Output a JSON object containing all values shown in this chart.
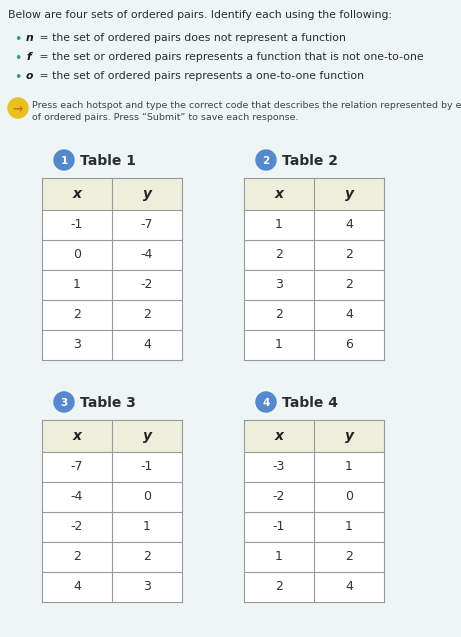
{
  "bg_color": "#eef5f5",
  "text_color": "#2c2c2c",
  "title_text": "Below are four sets of ordered pairs. Identify each using the following:",
  "bullets": [
    {
      "bold": "n",
      "rest": " = the set of ordered pairs does not represent a function"
    },
    {
      "bold": "f",
      "rest": " = the set or ordered pairs represents a function that is not one-to-one"
    },
    {
      "bold": "o",
      "rest": " = the set of ordered pairs represents a one-to-one function"
    }
  ],
  "instruction_line1": "Press each hotspot and type the correct code that describes the relation represented by each set",
  "instruction_line2": "of ordered pairs. Press “Submit” to save each response.",
  "bullet_color": "#2a9d8f",
  "bold_color": "#1a1a1a",
  "instruction_color": "#444444",
  "arrow_bg": "#e8c020",
  "arrow_fg": "#cc7700",
  "tables": [
    {
      "number": "1",
      "title": "Table 1",
      "col_x": [
        "-1",
        "0",
        "1",
        "2",
        "3"
      ],
      "col_y": [
        "-7",
        "-4",
        "-2",
        "2",
        "4"
      ]
    },
    {
      "number": "2",
      "title": "Table 2",
      "col_x": [
        "1",
        "2",
        "3",
        "2",
        "1"
      ],
      "col_y": [
        "4",
        "2",
        "2",
        "4",
        "6"
      ]
    },
    {
      "number": "3",
      "title": "Table 3",
      "col_x": [
        "-7",
        "-4",
        "-2",
        "2",
        "4"
      ],
      "col_y": [
        "-1",
        "0",
        "1",
        "2",
        "3"
      ]
    },
    {
      "number": "4",
      "title": "Table 4",
      "col_x": [
        "-3",
        "-2",
        "-1",
        "1",
        "2"
      ],
      "col_y": [
        "1",
        "0",
        "1",
        "2",
        "4"
      ]
    }
  ],
  "hotspot_bg": "#5588cc",
  "hotspot_fg": "#ffffff",
  "table_border": "#999999",
  "header_bg": "#eeeedd",
  "row_bg": "#ffffff",
  "header_text_color": "#222222",
  "data_text_color": "#333333"
}
